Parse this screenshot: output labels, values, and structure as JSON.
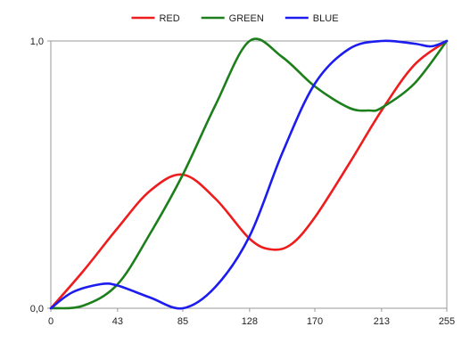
{
  "chart_data": {
    "type": "line",
    "xlabel": "",
    "ylabel": "",
    "xlim": [
      0,
      255
    ],
    "ylim": [
      0,
      1
    ],
    "x_ticks": [
      0,
      43,
      85,
      128,
      170,
      213,
      255
    ],
    "x_tick_labels": [
      "0",
      "43",
      "85",
      "128",
      "170",
      "213",
      "255"
    ],
    "y_ticks": [
      0,
      1
    ],
    "y_tick_labels": [
      "0,0",
      "1,0"
    ],
    "grid": false,
    "legend_position": "top",
    "series": [
      {
        "name": "RED",
        "color": "#ee1c1c",
        "points": [
          [
            0,
            0
          ],
          [
            21,
            0.14
          ],
          [
            43,
            0.3
          ],
          [
            64,
            0.44
          ],
          [
            85,
            0.5
          ],
          [
            106,
            0.41
          ],
          [
            128,
            0.26
          ],
          [
            142,
            0.22
          ],
          [
            155,
            0.24
          ],
          [
            170,
            0.34
          ],
          [
            192,
            0.54
          ],
          [
            213,
            0.74
          ],
          [
            234,
            0.91
          ],
          [
            255,
            1.0
          ]
        ]
      },
      {
        "name": "GREEN",
        "color": "#1c7f1c",
        "points": [
          [
            0,
            0
          ],
          [
            21,
            0.01
          ],
          [
            43,
            0.09
          ],
          [
            64,
            0.28
          ],
          [
            85,
            0.5
          ],
          [
            106,
            0.76
          ],
          [
            128,
            1.0
          ],
          [
            149,
            0.94
          ],
          [
            170,
            0.83
          ],
          [
            192,
            0.75
          ],
          [
            205,
            0.74
          ],
          [
            213,
            0.75
          ],
          [
            234,
            0.84
          ],
          [
            255,
            1.0
          ]
        ]
      },
      {
        "name": "BLUE",
        "color": "#1c1cee",
        "points": [
          [
            0,
            0
          ],
          [
            14,
            0.06
          ],
          [
            32,
            0.09
          ],
          [
            43,
            0.085
          ],
          [
            64,
            0.04
          ],
          [
            85,
            0.0
          ],
          [
            106,
            0.08
          ],
          [
            128,
            0.27
          ],
          [
            149,
            0.58
          ],
          [
            170,
            0.84
          ],
          [
            192,
            0.97
          ],
          [
            213,
            1.0
          ],
          [
            234,
            0.99
          ],
          [
            245,
            0.98
          ],
          [
            255,
            1.0
          ]
        ]
      }
    ]
  }
}
